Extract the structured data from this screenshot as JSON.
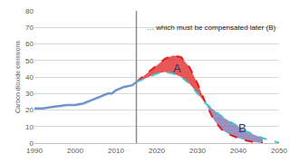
{
  "chart_data": {
    "type": "line",
    "y_label": "Carbon dioxide emissions",
    "xlim": [
      1990,
      2050
    ],
    "ylim": [
      0,
      80
    ],
    "xticks": [
      1990,
      2000,
      2010,
      2020,
      2030,
      2040,
      2050
    ],
    "yticks": [
      0,
      10,
      20,
      30,
      40,
      50,
      60,
      70,
      80
    ],
    "grid": true,
    "vertical_line": 2015,
    "annotations": [
      {
        "text": "… which must be compensated later (B)",
        "x": 2017,
        "y": 70
      },
      {
        "text": "A",
        "x": 2025,
        "y": 45
      },
      {
        "text": "B",
        "x": 2041,
        "y": 9
      }
    ],
    "series": [
      {
        "color": "#6f93cf",
        "line_style": "solid",
        "x": [
          1990,
          1992,
          1995,
          1998,
          2000,
          2002,
          2004,
          2006,
          2008,
          2009,
          2010,
          2012,
          2014,
          2015
        ],
        "values": [
          21,
          21,
          22,
          23,
          23,
          24,
          26,
          28,
          30,
          30,
          32,
          34,
          35,
          37
        ]
      },
      {
        "color": "#e02020",
        "line_style": "dash",
        "x": [
          2015,
          2018,
          2020,
          2022,
          2024,
          2026,
          2028,
          2030,
          2032,
          2034,
          2036,
          2038,
          2040,
          2042,
          2044,
          2046,
          2048,
          2050
        ],
        "values": [
          37,
          43,
          47,
          51,
          53,
          52,
          46,
          36,
          24,
          14,
          8,
          5,
          3,
          1.5,
          0.5,
          0,
          null,
          null
        ]
      },
      {
        "color": "#40c8c8",
        "line_style": "dash",
        "x": [
          2015,
          2018,
          2020,
          2022,
          2024,
          2026,
          2028,
          2030,
          2032,
          2034,
          2036,
          2038,
          2040,
          2042,
          2044,
          2046,
          2048,
          2050
        ],
        "values": [
          37,
          40,
          42,
          43,
          42,
          40,
          36,
          30,
          24,
          20,
          16,
          13,
          10,
          7,
          5,
          3,
          1.5,
          0.3
        ]
      }
    ]
  }
}
